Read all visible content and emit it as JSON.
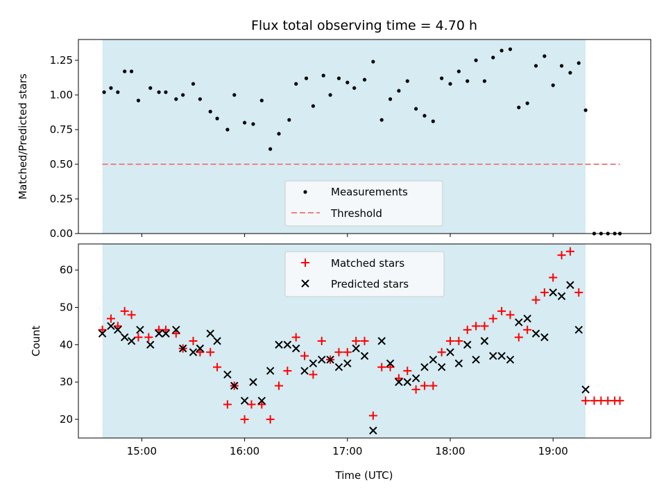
{
  "chart_data": [
    {
      "type": "scatter",
      "title": "Flux total observing time = 4.70 h",
      "xlabel": "",
      "ylabel": "Matched/Predicted stars",
      "x_unit": "UTC time (HH:MM)",
      "xlim": [
        "14:23",
        "19:57"
      ],
      "ylim": [
        0,
        1.4
      ],
      "yticks": [
        "0.00",
        "0.25",
        "0.50",
        "0.75",
        "1.00",
        "1.25"
      ],
      "xticks": [
        "15:00",
        "16:00",
        "17:00",
        "18:00",
        "19:00"
      ],
      "observing_window": [
        "14:37",
        "19:19"
      ],
      "legend": {
        "placement": "lower-center",
        "entries": [
          "Measurements",
          "Threshold"
        ]
      },
      "threshold": {
        "value": 0.5,
        "x_range": [
          "14:37",
          "19:39"
        ],
        "color": "#f08080"
      },
      "series": [
        {
          "name": "Measurements",
          "marker": "dot",
          "color": "#000000",
          "points": [
            [
              "14:38",
              1.02
            ],
            [
              "14:42",
              1.05
            ],
            [
              "14:46",
              1.02
            ],
            [
              "14:50",
              1.17
            ],
            [
              "14:54",
              1.17
            ],
            [
              "14:58",
              0.96
            ],
            [
              "15:05",
              1.05
            ],
            [
              "15:10",
              1.02
            ],
            [
              "15:14",
              1.02
            ],
            [
              "15:20",
              0.97
            ],
            [
              "15:24",
              1.0
            ],
            [
              "15:30",
              1.08
            ],
            [
              "15:34",
              0.97
            ],
            [
              "15:40",
              0.88
            ],
            [
              "15:44",
              0.83
            ],
            [
              "15:50",
              0.75
            ],
            [
              "15:54",
              1.0
            ],
            [
              "16:00",
              0.8
            ],
            [
              "16:05",
              0.79
            ],
            [
              "16:10",
              0.96
            ],
            [
              "16:15",
              0.61
            ],
            [
              "16:20",
              0.72
            ],
            [
              "16:26",
              0.82
            ],
            [
              "16:30",
              1.08
            ],
            [
              "16:36",
              1.12
            ],
            [
              "16:40",
              0.92
            ],
            [
              "16:46",
              1.14
            ],
            [
              "16:50",
              1.0
            ],
            [
              "16:55",
              1.12
            ],
            [
              "17:00",
              1.09
            ],
            [
              "17:04",
              1.05
            ],
            [
              "17:10",
              1.11
            ],
            [
              "17:15",
              1.24
            ],
            [
              "17:20",
              0.82
            ],
            [
              "17:25",
              0.97
            ],
            [
              "17:30",
              1.03
            ],
            [
              "17:35",
              1.1
            ],
            [
              "17:40",
              0.9
            ],
            [
              "17:45",
              0.85
            ],
            [
              "17:50",
              0.81
            ],
            [
              "17:55",
              1.12
            ],
            [
              "18:00",
              1.08
            ],
            [
              "18:05",
              1.17
            ],
            [
              "18:10",
              1.1
            ],
            [
              "18:15",
              1.25
            ],
            [
              "18:20",
              1.1
            ],
            [
              "18:25",
              1.27
            ],
            [
              "18:30",
              1.32
            ],
            [
              "18:35",
              1.33
            ],
            [
              "18:40",
              0.91
            ],
            [
              "18:45",
              0.94
            ],
            [
              "18:50",
              1.21
            ],
            [
              "18:55",
              1.28
            ],
            [
              "19:00",
              1.07
            ],
            [
              "19:05",
              1.21
            ],
            [
              "19:10",
              1.16
            ],
            [
              "19:15",
              1.23
            ],
            [
              "19:19",
              0.89
            ],
            [
              "19:24",
              0.0
            ],
            [
              "19:28",
              0.0
            ],
            [
              "19:32",
              0.0
            ],
            [
              "19:36",
              0.0
            ],
            [
              "19:39",
              0.0
            ]
          ]
        }
      ]
    },
    {
      "type": "scatter",
      "title": "",
      "xlabel": "Time (UTC)",
      "ylabel": "Count",
      "x_unit": "UTC time (HH:MM)",
      "xlim": [
        "14:23",
        "19:57"
      ],
      "ylim": [
        15,
        67
      ],
      "yticks": [
        "20",
        "30",
        "40",
        "50",
        "60"
      ],
      "xticks": [
        "15:00",
        "16:00",
        "17:00",
        "18:00",
        "19:00"
      ],
      "observing_window": [
        "14:37",
        "19:19"
      ],
      "legend": {
        "placement": "upper-center",
        "entries": [
          "Matched stars",
          "Predicted stars"
        ]
      },
      "series": [
        {
          "name": "Matched stars",
          "marker": "plus",
          "color": "#ff0000",
          "points": [
            [
              "14:37",
              44
            ],
            [
              "14:42",
              47
            ],
            [
              "14:46",
              45
            ],
            [
              "14:50",
              49
            ],
            [
              "14:54",
              48
            ],
            [
              "14:58",
              42
            ],
            [
              "15:04",
              42
            ],
            [
              "15:10",
              44
            ],
            [
              "15:14",
              44
            ],
            [
              "15:20",
              43
            ],
            [
              "15:24",
              39
            ],
            [
              "15:30",
              41
            ],
            [
              "15:34",
              38
            ],
            [
              "15:40",
              38
            ],
            [
              "15:44",
              34
            ],
            [
              "15:50",
              24
            ],
            [
              "15:54",
              29
            ],
            [
              "16:00",
              20
            ],
            [
              "16:04",
              24
            ],
            [
              "16:10",
              24
            ],
            [
              "16:15",
              20
            ],
            [
              "16:20",
              29
            ],
            [
              "16:25",
              33
            ],
            [
              "16:30",
              42
            ],
            [
              "16:35",
              37
            ],
            [
              "16:40",
              32
            ],
            [
              "16:45",
              41
            ],
            [
              "16:50",
              36
            ],
            [
              "16:55",
              38
            ],
            [
              "17:00",
              38
            ],
            [
              "17:05",
              41
            ],
            [
              "17:10",
              41
            ],
            [
              "17:15",
              21
            ],
            [
              "17:20",
              34
            ],
            [
              "17:25",
              34
            ],
            [
              "17:30",
              31
            ],
            [
              "17:35",
              33
            ],
            [
              "17:40",
              28
            ],
            [
              "17:45",
              29
            ],
            [
              "17:50",
              29
            ],
            [
              "17:55",
              38
            ],
            [
              "18:00",
              41
            ],
            [
              "18:05",
              41
            ],
            [
              "18:10",
              44
            ],
            [
              "18:15",
              45
            ],
            [
              "18:20",
              45
            ],
            [
              "18:25",
              47
            ],
            [
              "18:30",
              49
            ],
            [
              "18:35",
              48
            ],
            [
              "18:40",
              42
            ],
            [
              "18:45",
              44
            ],
            [
              "18:50",
              52
            ],
            [
              "18:55",
              54
            ],
            [
              "19:00",
              58
            ],
            [
              "19:05",
              64
            ],
            [
              "19:10",
              65
            ],
            [
              "19:15",
              54
            ],
            [
              "19:19",
              25
            ],
            [
              "19:24",
              25
            ],
            [
              "19:28",
              25
            ],
            [
              "19:32",
              25
            ],
            [
              "19:36",
              25
            ],
            [
              "19:39",
              25
            ]
          ]
        },
        {
          "name": "Predicted stars",
          "marker": "x",
          "color": "#000000",
          "points": [
            [
              "14:37",
              43
            ],
            [
              "14:42",
              45
            ],
            [
              "14:46",
              44
            ],
            [
              "14:50",
              42
            ],
            [
              "14:54",
              41
            ],
            [
              "14:59",
              44
            ],
            [
              "15:05",
              40
            ],
            [
              "15:10",
              43
            ],
            [
              "15:14",
              43
            ],
            [
              "15:20",
              44
            ],
            [
              "15:24",
              39
            ],
            [
              "15:30",
              38
            ],
            [
              "15:34",
              39
            ],
            [
              "15:40",
              43
            ],
            [
              "15:44",
              41
            ],
            [
              "15:50",
              32
            ],
            [
              "15:54",
              29
            ],
            [
              "16:00",
              25
            ],
            [
              "16:05",
              30
            ],
            [
              "16:10",
              25
            ],
            [
              "16:15",
              33
            ],
            [
              "16:20",
              40
            ],
            [
              "16:25",
              40
            ],
            [
              "16:30",
              39
            ],
            [
              "16:35",
              33
            ],
            [
              "16:40",
              35
            ],
            [
              "16:45",
              36
            ],
            [
              "16:50",
              36
            ],
            [
              "16:55",
              34
            ],
            [
              "17:00",
              35
            ],
            [
              "17:05",
              39
            ],
            [
              "17:10",
              37
            ],
            [
              "17:15",
              17
            ],
            [
              "17:20",
              41
            ],
            [
              "17:25",
              35
            ],
            [
              "17:30",
              30
            ],
            [
              "17:35",
              30
            ],
            [
              "17:40",
              31
            ],
            [
              "17:45",
              34
            ],
            [
              "17:50",
              36
            ],
            [
              "17:55",
              34
            ],
            [
              "18:00",
              38
            ],
            [
              "18:05",
              35
            ],
            [
              "18:10",
              40
            ],
            [
              "18:15",
              36
            ],
            [
              "18:20",
              41
            ],
            [
              "18:25",
              37
            ],
            [
              "18:30",
              37
            ],
            [
              "18:35",
              36
            ],
            [
              "18:40",
              46
            ],
            [
              "18:45",
              47
            ],
            [
              "18:50",
              43
            ],
            [
              "18:55",
              42
            ],
            [
              "19:00",
              54
            ],
            [
              "19:05",
              53
            ],
            [
              "19:10",
              56
            ],
            [
              "19:15",
              44
            ],
            [
              "19:19",
              28
            ]
          ]
        }
      ]
    }
  ],
  "colors": {
    "observing_window_fill": "#add8e6",
    "legend_background": "#f4f8fb",
    "axis": "#000000"
  }
}
